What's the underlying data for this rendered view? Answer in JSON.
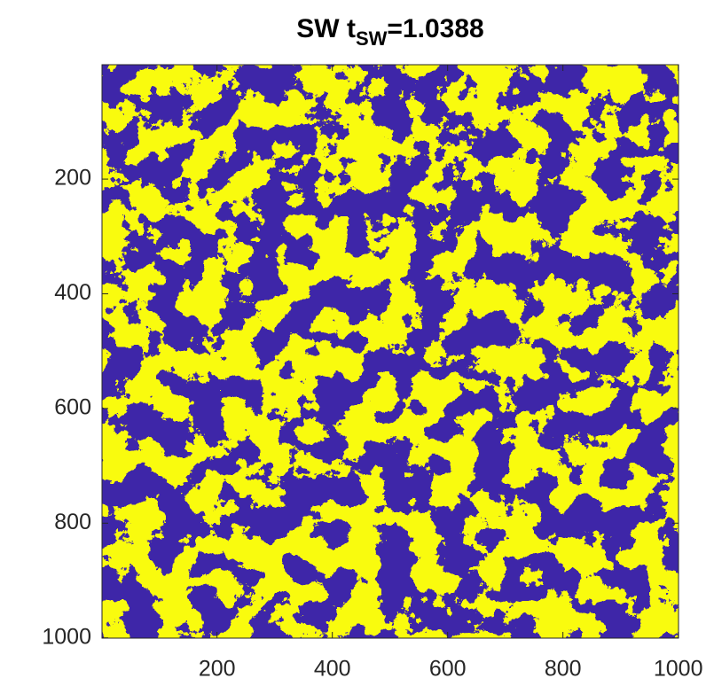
{
  "chart_data": {
    "type": "image",
    "title": {
      "text": "SW t",
      "subscript": "SW",
      "suffix": "=1.0388"
    },
    "colors": [
      "#3e26a8",
      "#f9fb0e"
    ],
    "xlim": [
      0.5,
      1000.5
    ],
    "ylim": [
      0.5,
      1000.5
    ],
    "y_reversed": true,
    "xticks": [
      200,
      400,
      600,
      800,
      1000
    ],
    "yticks": [
      200,
      400,
      600,
      800,
      1000
    ]
  }
}
